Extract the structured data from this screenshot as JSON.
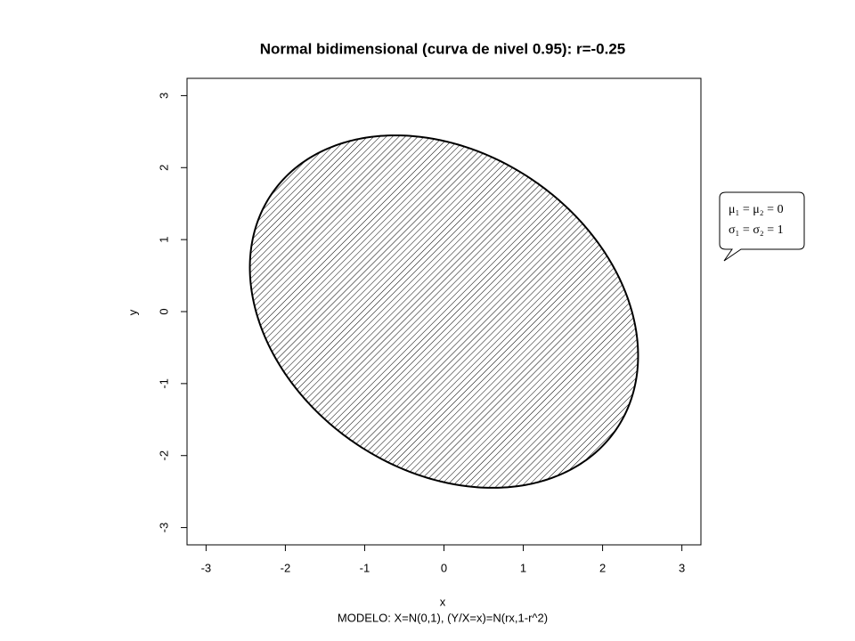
{
  "chart_data": {
    "type": "ellipse",
    "title": "Normal bidimensional (curva de nivel 0.95): r=-0.25",
    "subtitle": "MODELO: X=N(0,1), (Y/X=x)=N(rx,1-r^2)",
    "x_label": "x",
    "y_label": "y",
    "r": -0.25,
    "level": 0.95,
    "xlim": [
      -3.24,
      3.24
    ],
    "ylim": [
      -3.24,
      3.24
    ],
    "xticks": [
      -3,
      -2,
      -1,
      0,
      1,
      2,
      3
    ],
    "yticks": [
      -3,
      -2,
      -1,
      0,
      1,
      2,
      3
    ],
    "color": "#000000",
    "hatched": true,
    "annotations": [
      "μ₁ = μ₂ = 0",
      "σ₁ = σ₂ = 1"
    ]
  }
}
